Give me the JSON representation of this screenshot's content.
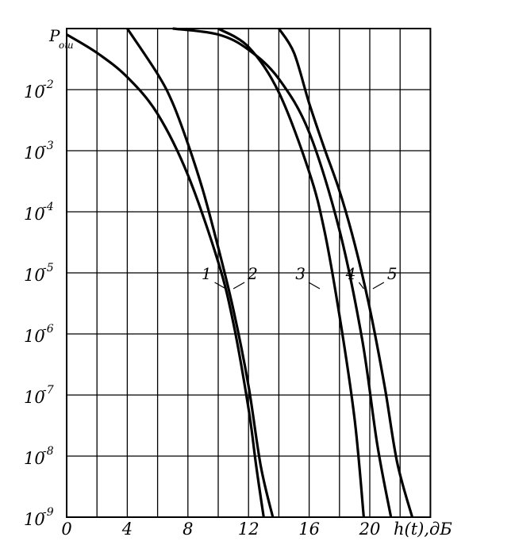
{
  "chart_data": {
    "type": "line",
    "ylabel": "P_ош",
    "ylabel_main": "P",
    "ylabel_sub": "ош",
    "xlabel": "h(t),дБ",
    "x_ticks": [
      0,
      4,
      8,
      12,
      16,
      20
    ],
    "x_tick_labels": [
      "0",
      "4",
      "8",
      "12",
      "16",
      "20"
    ],
    "xlim": [
      0,
      24
    ],
    "y_scale": "log",
    "ylim": [
      1e-09,
      0.1
    ],
    "y_ticks": [
      {
        "value": 0.01,
        "base": "10",
        "exp": "-2"
      },
      {
        "value": 0.001,
        "base": "10",
        "exp": "-3"
      },
      {
        "value": 0.0001,
        "base": "10",
        "exp": "-4"
      },
      {
        "value": 1e-05,
        "base": "10",
        "exp": "-5"
      },
      {
        "value": 1e-06,
        "base": "10",
        "exp": "-6"
      },
      {
        "value": 1e-07,
        "base": "10",
        "exp": "-7"
      },
      {
        "value": 1e-08,
        "base": "10",
        "exp": "-8"
      },
      {
        "value": 1e-09,
        "base": "10",
        "exp": "-9"
      }
    ],
    "grid": true,
    "series": [
      {
        "name": "1",
        "x": [
          0.0,
          2.0,
          4.0,
          6.0,
          8.0,
          10.0,
          11.0,
          12.0,
          12.5,
          13.0
        ],
        "y": [
          0.08,
          0.04,
          0.016,
          0.004,
          0.0004,
          1.5e-05,
          1.5e-06,
          6e-08,
          7e-09,
          1e-09
        ]
      },
      {
        "name": "2",
        "x": [
          4.0,
          6.0,
          7.0,
          8.0,
          9.0,
          10.0,
          11.0,
          12.0,
          12.8,
          13.6
        ],
        "y": [
          0.1,
          0.018,
          0.006,
          0.0013,
          0.00022,
          2.6e-05,
          2.5e-06,
          1.4e-07,
          7e-09,
          1e-09
        ]
      },
      {
        "name": "3",
        "x": [
          10.0,
          12.0,
          14.0,
          16.0,
          17.0,
          18.0,
          19.0,
          19.6
        ],
        "y": [
          0.1,
          0.05,
          0.009,
          0.00045,
          5e-05,
          2e-06,
          4e-08,
          1e-09
        ]
      },
      {
        "name": "4",
        "x": [
          7.0,
          10.0,
          12.0,
          14.0,
          16.0,
          18.0,
          19.5,
          20.5,
          21.4
        ],
        "y": [
          0.1,
          0.08,
          0.045,
          0.015,
          0.002,
          5e-05,
          8e-07,
          1.5e-08,
          1e-09
        ]
      },
      {
        "name": "5",
        "x": [
          14.0,
          15.0,
          16.0,
          17.0,
          18.0,
          19.0,
          20.0,
          21.0,
          21.8,
          22.8
        ],
        "y": [
          0.1,
          0.04,
          0.006,
          0.0011,
          0.00022,
          3e-05,
          2.6e-06,
          1.3e-07,
          8e-09,
          1e-09
        ]
      }
    ],
    "annotations": [
      {
        "text": "1",
        "series": "1",
        "point": [
          10.5,
          5.5e-06
        ]
      },
      {
        "text": "2",
        "series": "2",
        "point": [
          11.0,
          5.5e-06
        ]
      },
      {
        "text": "3",
        "series": "3",
        "point": [
          16.7,
          5.5e-06
        ]
      },
      {
        "text": "4",
        "series": "4",
        "point": [
          19.6,
          5.5e-06
        ]
      },
      {
        "text": "5",
        "series": "5",
        "point": [
          20.2,
          5.5e-06
        ]
      }
    ]
  }
}
